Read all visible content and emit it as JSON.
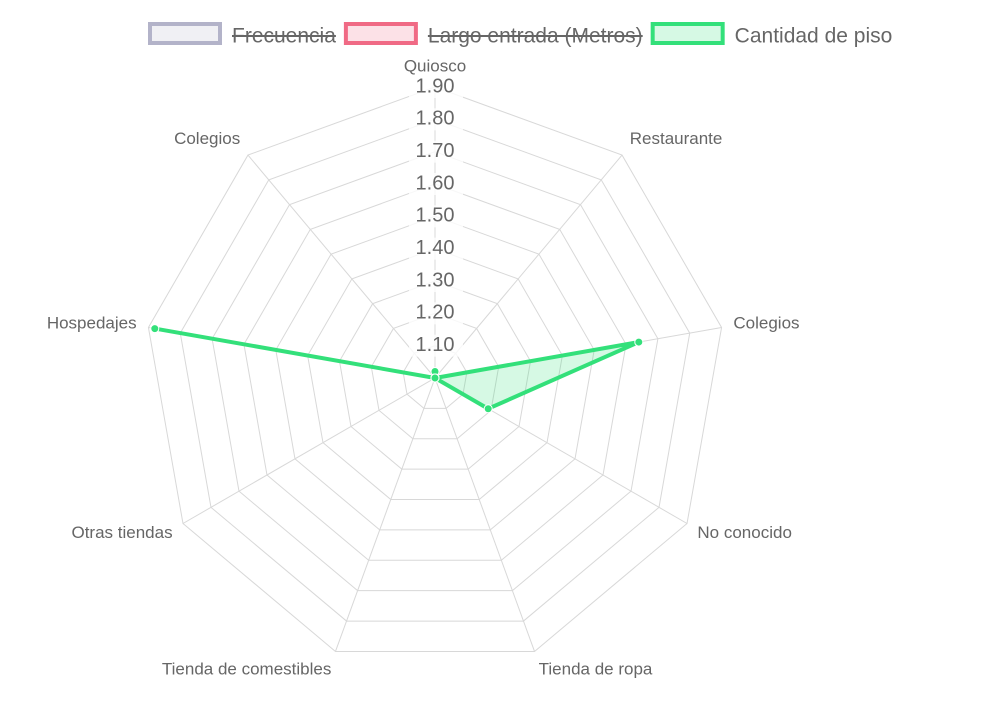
{
  "chart_data": {
    "type": "radar",
    "categories": [
      "Quiosco",
      "Restaurante",
      "Colegios",
      "No conocido",
      "Tienda de ropa",
      "Tienda de comestibles",
      "Otras tiendas",
      "Hospedajes",
      "Colegios"
    ],
    "series": [
      {
        "name": "Frecuencia",
        "color": "#b3b3c9",
        "hidden": true
      },
      {
        "name": "Largo entrada (Metros)",
        "color": "#f06a85",
        "hidden": true
      },
      {
        "name": "Cantidad de piso",
        "color": "#33e07a",
        "values": [
          1.02,
          1.0,
          1.64,
          1.19,
          1.0,
          1.0,
          1.0,
          1.88,
          1.0
        ]
      }
    ],
    "ylim": [
      1.0,
      1.9
    ],
    "yticks": [
      {
        "value": 1.1,
        "label": "1.10"
      },
      {
        "value": 1.2,
        "label": "1.20"
      },
      {
        "value": 1.3,
        "label": "1.30"
      },
      {
        "value": 1.4,
        "label": "1.40"
      },
      {
        "value": 1.5,
        "label": "1.50"
      },
      {
        "value": 1.6,
        "label": "1.60"
      },
      {
        "value": 1.7,
        "label": "1.70"
      },
      {
        "value": 1.8,
        "label": "1.80"
      },
      {
        "value": 1.9,
        "label": "1.90"
      }
    ],
    "grid": true,
    "legend": "top"
  }
}
